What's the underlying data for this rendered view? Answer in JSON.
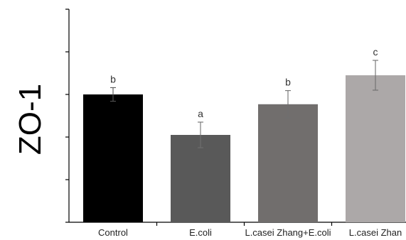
{
  "chart_data": {
    "type": "bar",
    "title": "",
    "xlabel": "",
    "ylabel": "ZO-1",
    "ylim": [
      0,
      5
    ],
    "yticks": [
      0,
      1,
      2,
      3,
      4,
      5
    ],
    "ytick_labels_shown": false,
    "grid": false,
    "legend": "none",
    "categories": [
      "Control",
      "E.coli",
      "L.casei Zhang+E.coli",
      "L.casei Zhang"
    ],
    "category_labels_as_shown": [
      "Control",
      "E.coli",
      "L.casei Zhang+E.coli",
      "L.casei Zhan"
    ],
    "values": [
      3.0,
      2.05,
      2.77,
      3.45
    ],
    "errors": [
      0.16,
      0.3,
      0.32,
      0.35
    ],
    "significance": [
      "b",
      "a",
      "b",
      "c"
    ],
    "colors": [
      "#000000",
      "#595959",
      "#716e6d",
      "#aca8a8"
    ]
  }
}
